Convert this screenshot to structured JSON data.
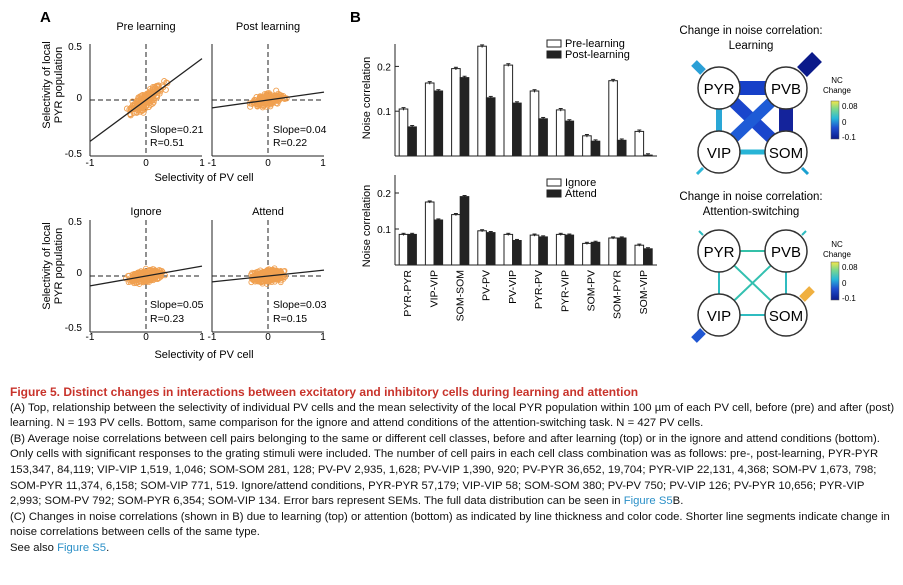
{
  "panels": {
    "A": {
      "label": "A",
      "ylabel_line1": "Selectivity of local",
      "ylabel_line2": "PYR population",
      "xlabel": "Selectivity of PV cell",
      "subplots": [
        {
          "title": "Pre learning",
          "slope": "Slope=0.21",
          "r": "R=0.51",
          "line_slope": 0.21
        },
        {
          "title": "Post learning",
          "slope": "Slope=0.04",
          "r": "R=0.22",
          "line_slope": 0.04
        },
        {
          "title": "Ignore",
          "slope": "Slope=0.05",
          "r": "R=0.23",
          "line_slope": 0.05
        },
        {
          "title": "Attend",
          "slope": "Slope=0.03",
          "r": "R=0.15",
          "line_slope": 0.03
        }
      ],
      "ytick_top": "0.5",
      "ytick_mid": "0",
      "ytick_bot": "-0.5",
      "xtick_left": "-1",
      "xtick_mid": "0",
      "xtick_right": "1",
      "xlim": [
        -1,
        1
      ],
      "ylim": [
        -0.5,
        0.5
      ],
      "point_color": "#f0a050"
    },
    "B": {
      "label": "B",
      "ylabel": "Noise correlation",
      "categories": [
        "PYR-PYR",
        "VIP-VIP",
        "SOM-SOM",
        "PV-PV",
        "PV-VIP",
        "PYR-PV",
        "PYR-VIP",
        "SOM-PV",
        "SOM-PYR",
        "SOM-VIP"
      ]
    },
    "C": {
      "label": "C",
      "top_title_line1": "Change in noise correlation:",
      "top_title_line2": "Learning",
      "bottom_title_line1": "Change in noise correlation:",
      "bottom_title_line2": "Attention-switching",
      "nodes": [
        "PYR",
        "PVB",
        "VIP",
        "SOM"
      ],
      "colorbar_title_line1": "NC",
      "colorbar_title_line2": "Change",
      "cb_top": "0.08",
      "cb_mid": "0",
      "cb_bot": "-0.1",
      "cb2_top": "0.08",
      "cb2_mid": "0",
      "cb2_bot": "-0.1"
    }
  },
  "chart_data": [
    {
      "type": "bar",
      "title": "",
      "ylabel": "Noise correlation",
      "categories": [
        "PYR-PYR",
        "VIP-VIP",
        "SOM-SOM",
        "PV-PV",
        "PV-VIP",
        "PYR-PV",
        "PYR-VIP",
        "SOM-PV",
        "SOM-PYR",
        "SOM-VIP"
      ],
      "ylim": [
        0,
        0.25
      ],
      "yticks": [
        "0.1",
        "0.2"
      ],
      "series": [
        {
          "name": "Pre-learning",
          "values": [
            0.105,
            0.163,
            0.195,
            0.245,
            0.203,
            0.145,
            0.103,
            0.045,
            0.168,
            0.055
          ],
          "color": "#ffffff"
        },
        {
          "name": "Post-learning",
          "values": [
            0.065,
            0.145,
            0.175,
            0.13,
            0.118,
            0.083,
            0.078,
            0.033,
            0.035,
            0.002
          ],
          "color": "#222222"
        }
      ]
    },
    {
      "type": "bar",
      "title": "",
      "ylabel": "Noise correlation",
      "categories": [
        "PYR-PYR",
        "VIP-VIP",
        "SOM-SOM",
        "PV-PV",
        "PV-VIP",
        "PYR-PV",
        "PYR-VIP",
        "SOM-PV",
        "SOM-PYR",
        "SOM-VIP"
      ],
      "ylim": [
        0,
        0.25
      ],
      "yticks": [
        "0.1",
        "0.2"
      ],
      "series": [
        {
          "name": "Ignore",
          "values": [
            0.085,
            0.175,
            0.14,
            0.095,
            0.085,
            0.083,
            0.085,
            0.06,
            0.075,
            0.055
          ],
          "color": "#ffffff"
        },
        {
          "name": "Attend",
          "values": [
            0.085,
            0.125,
            0.19,
            0.09,
            0.068,
            0.078,
            0.083,
            0.063,
            0.075,
            0.045
          ],
          "color": "#222222"
        }
      ]
    }
  ],
  "caption": {
    "title": "Figure 5.  Distinct changes in interactions between excitatory and inhibitory cells during learning and attention",
    "pA": "(A) Top, relationship between the selectivity of individual PV cells and the mean selectivity of the local PYR population within 100 µm of each PV cell, before (pre) and after (post) learning. N = 193 PV cells. Bottom, same comparison for the ignore and attend conditions of the attention-switching task. N = 427 PV cells.",
    "pB": "(B) Average noise correlations between cell pairs belonging to the same or different cell classes, before and after learning (top) or in the ignore and attend conditions (bottom). Only cells with significant responses to the grating stimuli were included. The number of cell pairs in each cell class combination was as follows: pre-, post-learning, PYR-PYR 153,347, 84,119; VIP-VIP 1,519, 1,046; SOM-SOM 281, 128; PV-PV 2,935, 1,628; PV-VIP 1,390, 920; PV-PYR 36,652, 19,704; PYR-VIP 22,131, 4,368; SOM-PV 1,673, 798; SOM-PYR 11,374, 6,158; SOM-VIP 771, 519. Ignore/attend conditions, PYR-PYR 57,179; VIP-VIP 58; SOM-SOM 380; PV-PV 750; PV-VIP 126; PV-PYR 10,656; PYR-VIP 2,993; SOM-PV 792; SOM-PYR 6,354; SOM-VIP 134. Error bars represent SEMs. The full data distribution can be seen in",
    "pB_link": "Figure S5",
    "pB_end": "B.",
    "pC": "(C) Changes in noise correlations (shown in B) due to learning (top) or attention (bottom) as indicated by line thickness and color code. Shorter line segments indicate change in noise correlations between cells of the same type.",
    "see_also": "See also",
    "see_also_link": "Figure S5",
    "see_also_end": "."
  }
}
